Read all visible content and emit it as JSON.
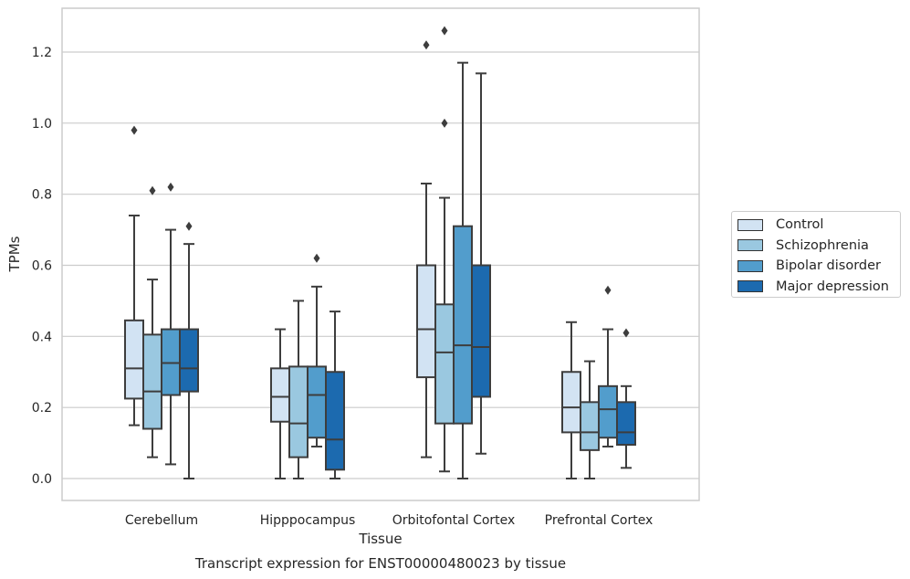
{
  "chart_data": {
    "type": "box",
    "title": "Transcript expression for ENST00000480023 by tissue",
    "xlabel": "Tissue",
    "ylabel": "TPMs",
    "ylim": [
      -0.06,
      1.32
    ],
    "yticks": [
      0.0,
      0.2,
      0.4,
      0.6,
      0.8,
      1.0,
      1.2
    ],
    "ytick_labels": [
      "0.0",
      "0.2",
      "0.4",
      "0.6",
      "0.8",
      "1.0",
      "1.2"
    ],
    "grid": "horizontal",
    "legend_position": "right",
    "categories": [
      "Cerebellum",
      "Hipppocampus",
      "Orbitofontal Cortex",
      "Prefrontal Cortex"
    ],
    "series": [
      {
        "name": "Control",
        "color": "#d2e3f3",
        "boxes": [
          {
            "whislo": 0.15,
            "q1": 0.225,
            "med": 0.31,
            "q3": 0.445,
            "whishi": 0.74,
            "fliers": [
              0.98
            ]
          },
          {
            "whislo": 0.0,
            "q1": 0.16,
            "med": 0.23,
            "q3": 0.31,
            "whishi": 0.42,
            "fliers": []
          },
          {
            "whislo": 0.06,
            "q1": 0.285,
            "med": 0.42,
            "q3": 0.6,
            "whishi": 0.83,
            "fliers": [
              1.22
            ]
          },
          {
            "whislo": 0.0,
            "q1": 0.13,
            "med": 0.2,
            "q3": 0.3,
            "whishi": 0.44,
            "fliers": []
          }
        ]
      },
      {
        "name": "Schizophrenia",
        "color": "#9ac8e0",
        "boxes": [
          {
            "whislo": 0.06,
            "q1": 0.14,
            "med": 0.245,
            "q3": 0.405,
            "whishi": 0.56,
            "fliers": [
              0.81
            ]
          },
          {
            "whislo": 0.0,
            "q1": 0.06,
            "med": 0.155,
            "q3": 0.315,
            "whishi": 0.5,
            "fliers": []
          },
          {
            "whislo": 0.02,
            "q1": 0.155,
            "med": 0.355,
            "q3": 0.49,
            "whishi": 0.79,
            "fliers": [
              1.0,
              1.26
            ]
          },
          {
            "whislo": 0.0,
            "q1": 0.08,
            "med": 0.13,
            "q3": 0.215,
            "whishi": 0.33,
            "fliers": []
          }
        ]
      },
      {
        "name": "Bipolar disorder",
        "color": "#529dcc",
        "boxes": [
          {
            "whislo": 0.04,
            "q1": 0.235,
            "med": 0.325,
            "q3": 0.42,
            "whishi": 0.7,
            "fliers": [
              0.82
            ]
          },
          {
            "whislo": 0.09,
            "q1": 0.115,
            "med": 0.235,
            "q3": 0.315,
            "whishi": 0.54,
            "fliers": [
              0.62
            ]
          },
          {
            "whislo": 0.0,
            "q1": 0.155,
            "med": 0.375,
            "q3": 0.71,
            "whishi": 1.17,
            "fliers": []
          },
          {
            "whislo": 0.09,
            "q1": 0.115,
            "med": 0.195,
            "q3": 0.26,
            "whishi": 0.42,
            "fliers": [
              0.53
            ]
          }
        ]
      },
      {
        "name": "Major depression",
        "color": "#1c6aaf",
        "boxes": [
          {
            "whislo": 0.0,
            "q1": 0.245,
            "med": 0.31,
            "q3": 0.42,
            "whishi": 0.66,
            "fliers": [
              0.71
            ]
          },
          {
            "whislo": 0.0,
            "q1": 0.025,
            "med": 0.11,
            "q3": 0.3,
            "whishi": 0.47,
            "fliers": []
          },
          {
            "whislo": 0.07,
            "q1": 0.23,
            "med": 0.37,
            "q3": 0.6,
            "whishi": 1.14,
            "fliers": []
          },
          {
            "whislo": 0.03,
            "q1": 0.095,
            "med": 0.13,
            "q3": 0.215,
            "whishi": 0.26,
            "fliers": [
              0.41
            ]
          }
        ]
      }
    ]
  }
}
